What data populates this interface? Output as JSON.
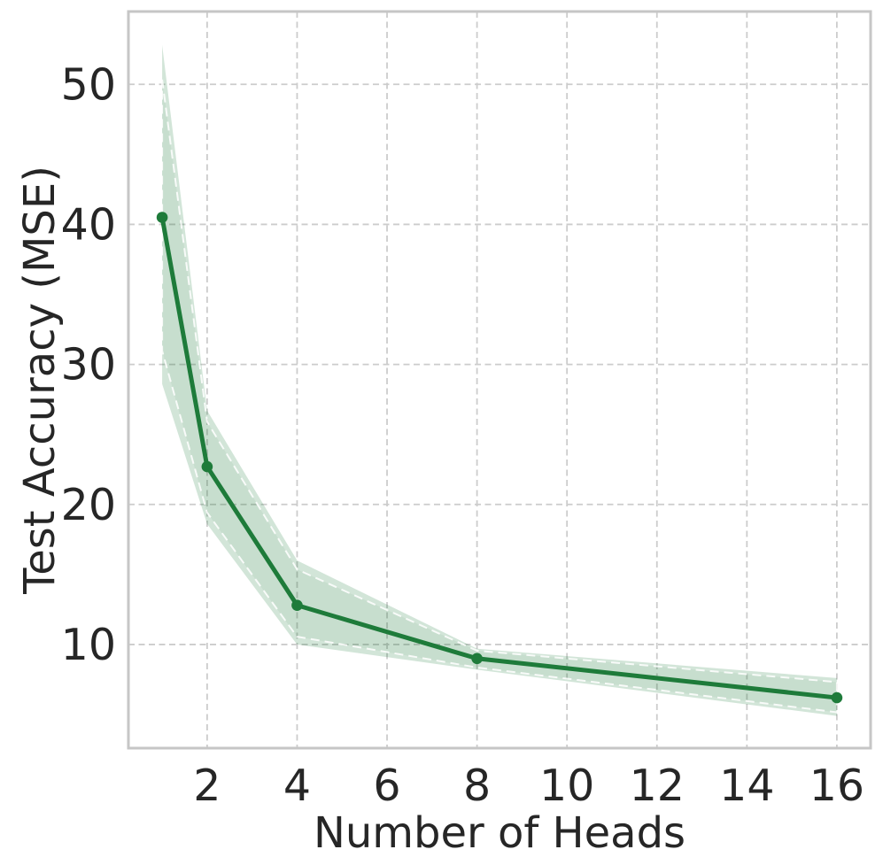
{
  "chart_data": {
    "type": "line",
    "title": "",
    "xlabel": "Number of Heads",
    "ylabel": "Test Accuracy (MSE)",
    "x": [
      1,
      2,
      4,
      8,
      16
    ],
    "series": [
      {
        "values": [
          40.5,
          22.7,
          12.8,
          9.0,
          6.2
        ],
        "band_low": [
          28.6,
          18.6,
          10.0,
          8.2,
          4.9
        ],
        "band_high": [
          52.8,
          26.7,
          16.0,
          9.7,
          7.6
        ]
      }
    ],
    "xticks": [
      2,
      4,
      6,
      8,
      10,
      12,
      14,
      16
    ],
    "yticks": [
      10,
      20,
      30,
      40,
      50
    ],
    "xlim": [
      0.25,
      16.75
    ],
    "ylim": [
      2.6,
      55.2
    ],
    "grid": true,
    "grid_style": "dashed",
    "legend": false,
    "markers": true,
    "colors": {
      "line": "#1e7b3a",
      "band_fill": "#1e7b3a",
      "band_outer_opacity": 0.2,
      "band_inner_opacity": 0.06,
      "band_edge": "rgba(255,255,255,0.85)",
      "grid": "#cccccc",
      "spine": "#c6c6c6",
      "text": "#262626",
      "background": "#ffffff"
    }
  }
}
